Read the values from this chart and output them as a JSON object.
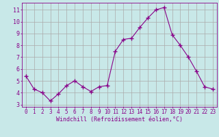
{
  "x": [
    0,
    1,
    2,
    3,
    4,
    5,
    6,
    7,
    8,
    9,
    10,
    11,
    12,
    13,
    14,
    15,
    16,
    17,
    18,
    19,
    20,
    21,
    22,
    23
  ],
  "y": [
    5.4,
    4.3,
    4.0,
    3.3,
    3.9,
    4.6,
    5.0,
    4.5,
    4.1,
    4.5,
    4.6,
    7.5,
    8.5,
    8.6,
    9.5,
    10.3,
    11.0,
    11.2,
    8.9,
    8.0,
    7.0,
    5.8,
    4.5,
    4.3
  ],
  "line_color": "#880088",
  "marker": "+",
  "marker_size": 4,
  "bg_color": "#c8e8e8",
  "grid_color": "#aaaaaa",
  "xlabel": "Windchill (Refroidissement éolien,°C)",
  "xlabel_color": "#880088",
  "tick_color": "#880088",
  "xlim": [
    -0.5,
    23.5
  ],
  "ylim": [
    2.8,
    11.6
  ],
  "yticks": [
    3,
    4,
    5,
    6,
    7,
    8,
    9,
    10,
    11
  ],
  "xticks": [
    0,
    1,
    2,
    3,
    4,
    5,
    6,
    7,
    8,
    9,
    10,
    11,
    12,
    13,
    14,
    15,
    16,
    17,
    18,
    19,
    20,
    21,
    22,
    23
  ],
  "spine_color": "#880088",
  "axis_bg_color": "#c8e8e8",
  "tick_fontsize": 5.5,
  "xlabel_fontsize": 6.0,
  "ytick_fontsize": 6.0
}
